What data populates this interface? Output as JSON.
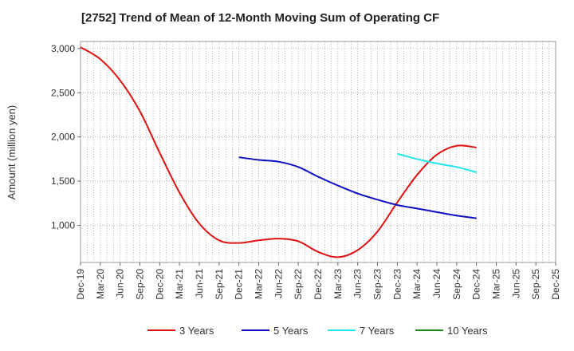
{
  "chart_data": {
    "type": "line",
    "title": "[2752]  Trend of Mean of 12-Month Moving Sum of Operating CF",
    "xlabel": "",
    "ylabel": "Amount (million yen)",
    "ylim": [
      580,
      3080
    ],
    "yticks": [
      1000,
      1500,
      2000,
      2500,
      3000
    ],
    "ytick_labels": [
      "1,000",
      "1,500",
      "2,000",
      "2,500",
      "3,000"
    ],
    "x_start": "Dec-19",
    "x_tick_labels": [
      "Dec-19",
      "Mar-20",
      "Jun-20",
      "Sep-20",
      "Dec-20",
      "Mar-21",
      "Jun-21",
      "Sep-21",
      "Dec-21",
      "Mar-22",
      "Jun-22",
      "Sep-22",
      "Dec-22",
      "Mar-23",
      "Jun-23",
      "Sep-23",
      "Dec-23",
      "Mar-24",
      "Jun-24",
      "Sep-24",
      "Dec-24",
      "Mar-25",
      "Jun-25",
      "Sep-25",
      "Dec-25"
    ],
    "grid": true,
    "legend_position": "bottom",
    "series": [
      {
        "name": "3 Years",
        "color": "#dd1111",
        "points": [
          [
            0,
            3015
          ],
          [
            3,
            2880
          ],
          [
            6,
            2640
          ],
          [
            9,
            2290
          ],
          [
            12,
            1820
          ],
          [
            15,
            1370
          ],
          [
            18,
            1020
          ],
          [
            21,
            830
          ],
          [
            24,
            800
          ],
          [
            27,
            830
          ],
          [
            30,
            850
          ],
          [
            33,
            820
          ],
          [
            36,
            700
          ],
          [
            39,
            640
          ],
          [
            42,
            720
          ],
          [
            45,
            930
          ],
          [
            48,
            1260
          ],
          [
            51,
            1570
          ],
          [
            54,
            1800
          ],
          [
            57,
            1900
          ],
          [
            60,
            1880
          ]
        ]
      },
      {
        "name": "5 Years",
        "color": "#0d0dc0",
        "points": [
          [
            24,
            1770
          ],
          [
            27,
            1740
          ],
          [
            30,
            1720
          ],
          [
            33,
            1660
          ],
          [
            36,
            1550
          ],
          [
            39,
            1450
          ],
          [
            42,
            1360
          ],
          [
            45,
            1290
          ],
          [
            48,
            1230
          ],
          [
            51,
            1190
          ],
          [
            54,
            1150
          ],
          [
            57,
            1110
          ],
          [
            60,
            1080
          ]
        ]
      },
      {
        "name": "7 Years",
        "color": "#22e5ee",
        "points": [
          [
            48,
            1810
          ],
          [
            51,
            1750
          ],
          [
            54,
            1700
          ],
          [
            57,
            1660
          ],
          [
            60,
            1600
          ]
        ]
      },
      {
        "name": "10 Years",
        "color": "#1a8a1a",
        "points": []
      }
    ]
  }
}
